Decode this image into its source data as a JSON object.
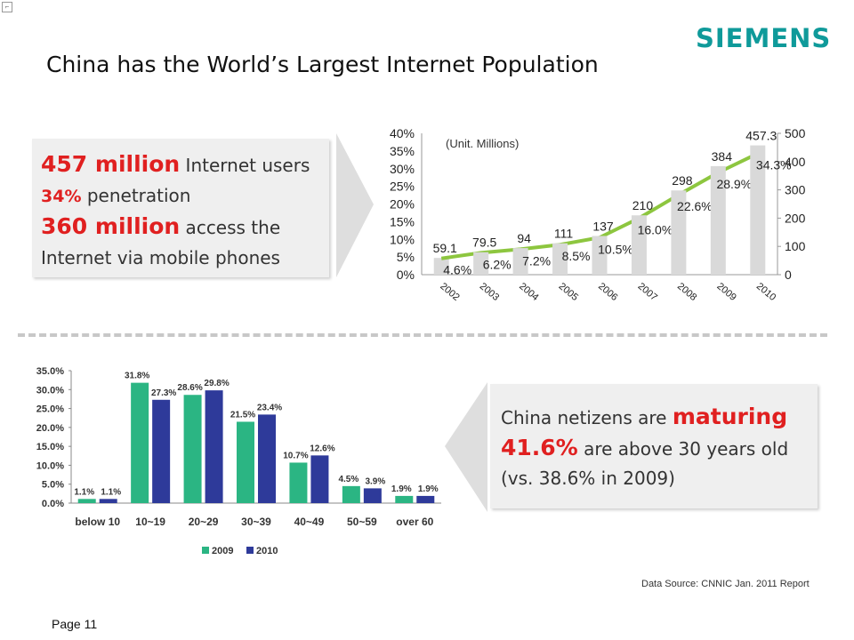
{
  "slide": {
    "brand": "SIEMENS",
    "title": "China has the World’s Largest Internet Population",
    "page_label": "Page 11",
    "source": "Data Source:  CNNIC Jan. 2011 Report",
    "colors": {
      "brand": "#0f9a9a",
      "highlight": "#e02020",
      "line": "#8dc63f",
      "bar_gray": "#d9d9d9",
      "bar_2009": "#2bb583",
      "bar_2010": "#2e3a9a"
    }
  },
  "callout_top": {
    "l1_num": "457 million",
    "l1_text": " Internet users",
    "l2_num": "34%",
    "l2_text": " penetration",
    "l3_num": "360 million",
    "l3_text": " access the",
    "l4_text": "Internet via mobile phones"
  },
  "callout_bottom": {
    "l1_text": "China netizens are ",
    "l1_em": "maturing",
    "l2_num": "41.6%",
    "l2_text": " are above 30 years old",
    "l3_text": "(vs. 38.6% in 2009)"
  },
  "chart_data": [
    {
      "type": "bar",
      "note": "(Unit. Millions)",
      "categories": [
        "2002",
        "2003",
        "2004",
        "2005",
        "2006",
        "2007",
        "2008",
        "2009",
        "2010"
      ],
      "series": [
        {
          "values": [
            59.1,
            79.5,
            94,
            111,
            137,
            210,
            298,
            384,
            457.3
          ],
          "value_labels": [
            "59.1",
            "79.5",
            "94",
            "111",
            "137",
            "210",
            "298",
            "384",
            "457.3"
          ],
          "axis": "right"
        },
        {
          "type": "line",
          "values": [
            4.6,
            6.2,
            7.2,
            8.5,
            10.5,
            16.0,
            22.6,
            28.9,
            34.3
          ],
          "value_labels": [
            "4.6%",
            "6.2%",
            "7.2%",
            "8.5%",
            "10.5%",
            "16.0%",
            "22.6%",
            "28.9%",
            "34.3%"
          ],
          "axis": "left"
        }
      ],
      "left_axis": {
        "ylim": [
          0,
          40
        ],
        "ticks": [
          "0%",
          "5%",
          "10%",
          "15%",
          "20%",
          "25%",
          "30%",
          "35%",
          "40%"
        ]
      },
      "right_axis": {
        "ylim": [
          0,
          500
        ],
        "ticks": [
          "0",
          "100",
          "200",
          "300",
          "400",
          "500"
        ]
      },
      "grid": false
    },
    {
      "type": "bar",
      "categories": [
        "below 10",
        "10~19",
        "20~29",
        "30~39",
        "40~49",
        "50~59",
        "over 60"
      ],
      "series": [
        {
          "name": "2009",
          "values": [
            1.1,
            31.8,
            28.6,
            21.5,
            10.7,
            4.5,
            1.9
          ],
          "value_labels": [
            "1.1%",
            "31.8%",
            "28.6%",
            "21.5%",
            "10.7%",
            "4.5%",
            "1.9%"
          ]
        },
        {
          "name": "2010",
          "values": [
            1.1,
            27.3,
            29.8,
            23.4,
            12.6,
            3.9,
            1.9
          ],
          "value_labels": [
            "1.1%",
            "27.3%",
            "29.8%",
            "23.4%",
            "12.6%",
            "3.9%",
            "1.9%"
          ]
        }
      ],
      "ylim": [
        0,
        35
      ],
      "ticks": [
        "0.0%",
        "5.0%",
        "10.0%",
        "15.0%",
        "20.0%",
        "25.0%",
        "30.0%",
        "35.0%"
      ],
      "legend": "bottom",
      "grid": false
    }
  ]
}
